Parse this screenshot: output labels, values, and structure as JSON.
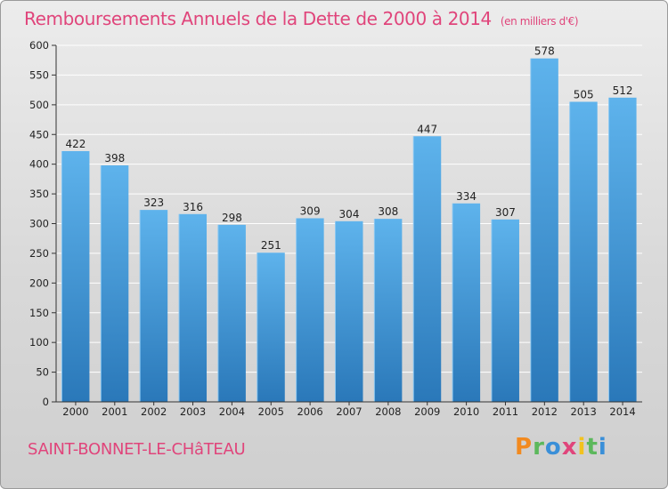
{
  "chart_data": {
    "type": "bar",
    "title": "Remboursements Annuels de la Dette de 2000 à 2014",
    "unit_note": "(en milliers d'€)",
    "categories": [
      "2000",
      "2001",
      "2002",
      "2003",
      "2004",
      "2005",
      "2006",
      "2007",
      "2008",
      "2009",
      "2010",
      "2011",
      "2012",
      "2013",
      "2014"
    ],
    "values": [
      422,
      398,
      323,
      316,
      298,
      251,
      309,
      304,
      308,
      447,
      334,
      307,
      578,
      505,
      512
    ],
    "yticks": [
      "0",
      "50",
      "100",
      "150",
      "200",
      "250",
      "300",
      "350",
      "400",
      "450",
      "500",
      "550",
      "600"
    ],
    "ylim": [
      0,
      600
    ],
    "xlabel": "",
    "ylabel": "",
    "grid": true,
    "bar_color_light": "#5eb3ec",
    "bar_color_dark": "#2a78b9",
    "grid_color": "#ffffff",
    "title_color": "#e0457b"
  },
  "footer": {
    "commune": "SAINT-BONNET-LE-CHâTEAU",
    "logo_letters": [
      {
        "char": "P",
        "color": "#f28a1f"
      },
      {
        "char": "r",
        "color": "#5cb85c"
      },
      {
        "char": "o",
        "color": "#3a8fd8"
      },
      {
        "char": "x",
        "color": "#e0457b"
      },
      {
        "char": "i",
        "color": "#f2c21f"
      },
      {
        "char": "t",
        "color": "#5cb85c"
      },
      {
        "char": "i",
        "color": "#3a8fd8"
      }
    ]
  }
}
